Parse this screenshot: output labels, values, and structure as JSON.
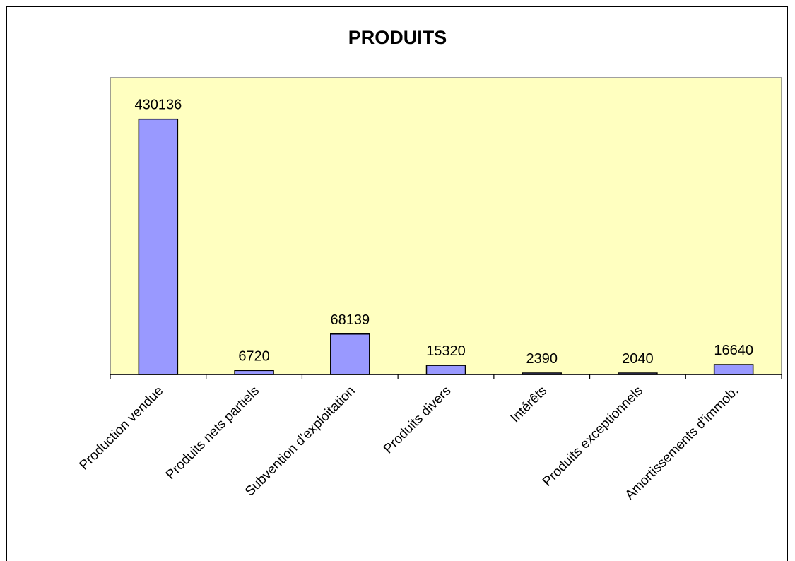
{
  "chart_data": {
    "type": "bar",
    "title": "PRODUITS",
    "categories": [
      "Production vendue",
      "Produits nets partiels",
      "Subvention d'exploitation",
      "Produits divers",
      "Intérêts",
      "Produits exceptionnels",
      "Amortissements d'immob."
    ],
    "values": [
      430136,
      6720,
      68139,
      15320,
      2390,
      2040,
      16640
    ],
    "ylim": [
      0,
      500000
    ],
    "grid": false,
    "legend": "none",
    "colors": {
      "bar": "#9999ff",
      "plot_background": "#ffffc0",
      "plot_border": "#808080"
    }
  }
}
